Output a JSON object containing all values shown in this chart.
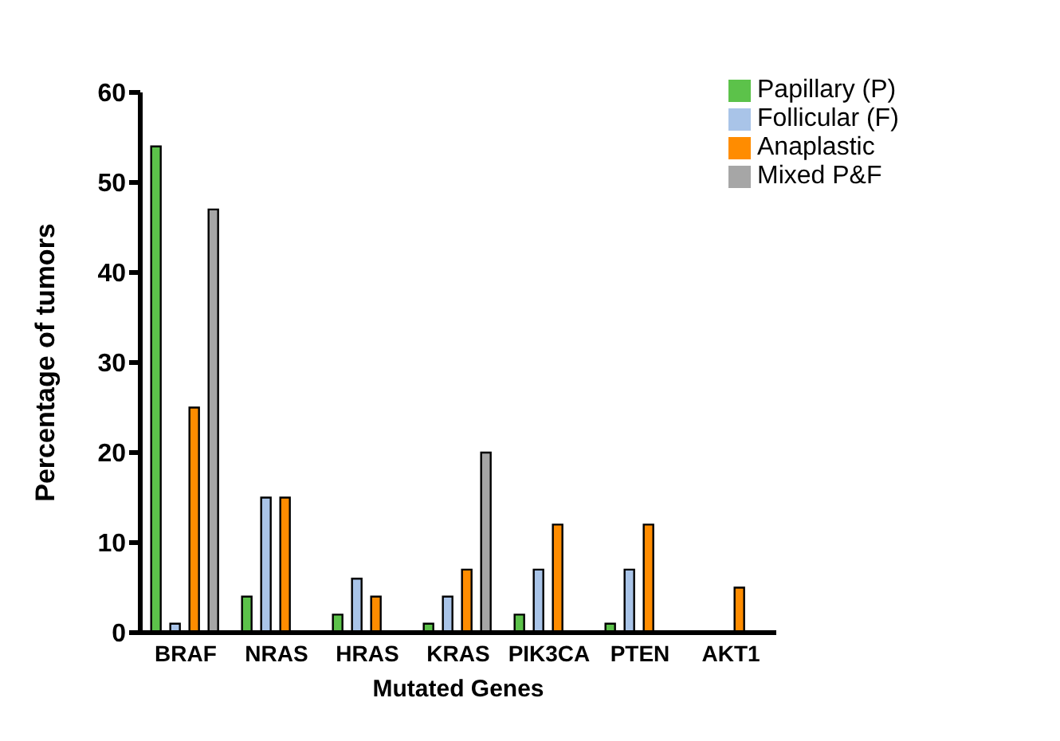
{
  "chart_data": {
    "type": "bar",
    "xlabel": "Mutated Genes",
    "ylabel": "Percentage of tumors",
    "categories": [
      "BRAF",
      "NRAS",
      "HRAS",
      "KRAS",
      "PIK3CA",
      "PTEN",
      "AKT1"
    ],
    "series": [
      {
        "name": "Papillary (P)",
        "color": "#5cc24a",
        "values": [
          54,
          4,
          2,
          1,
          2,
          1,
          0
        ]
      },
      {
        "name": "Follicular (F)",
        "color": "#a9c4e8",
        "values": [
          1,
          15,
          6,
          4,
          7,
          7,
          0
        ]
      },
      {
        "name": "Anaplastic",
        "color": "#ff8c00",
        "values": [
          25,
          15,
          4,
          7,
          12,
          12,
          5
        ]
      },
      {
        "name": "Mixed P&F",
        "color": "#a6a6a6",
        "values": [
          47,
          0,
          0,
          20,
          0,
          0,
          0
        ]
      }
    ],
    "ylim": [
      0,
      60
    ],
    "yticks": [
      0,
      10,
      20,
      30,
      40,
      50,
      60
    ],
    "grid": false,
    "legend": "top right"
  }
}
